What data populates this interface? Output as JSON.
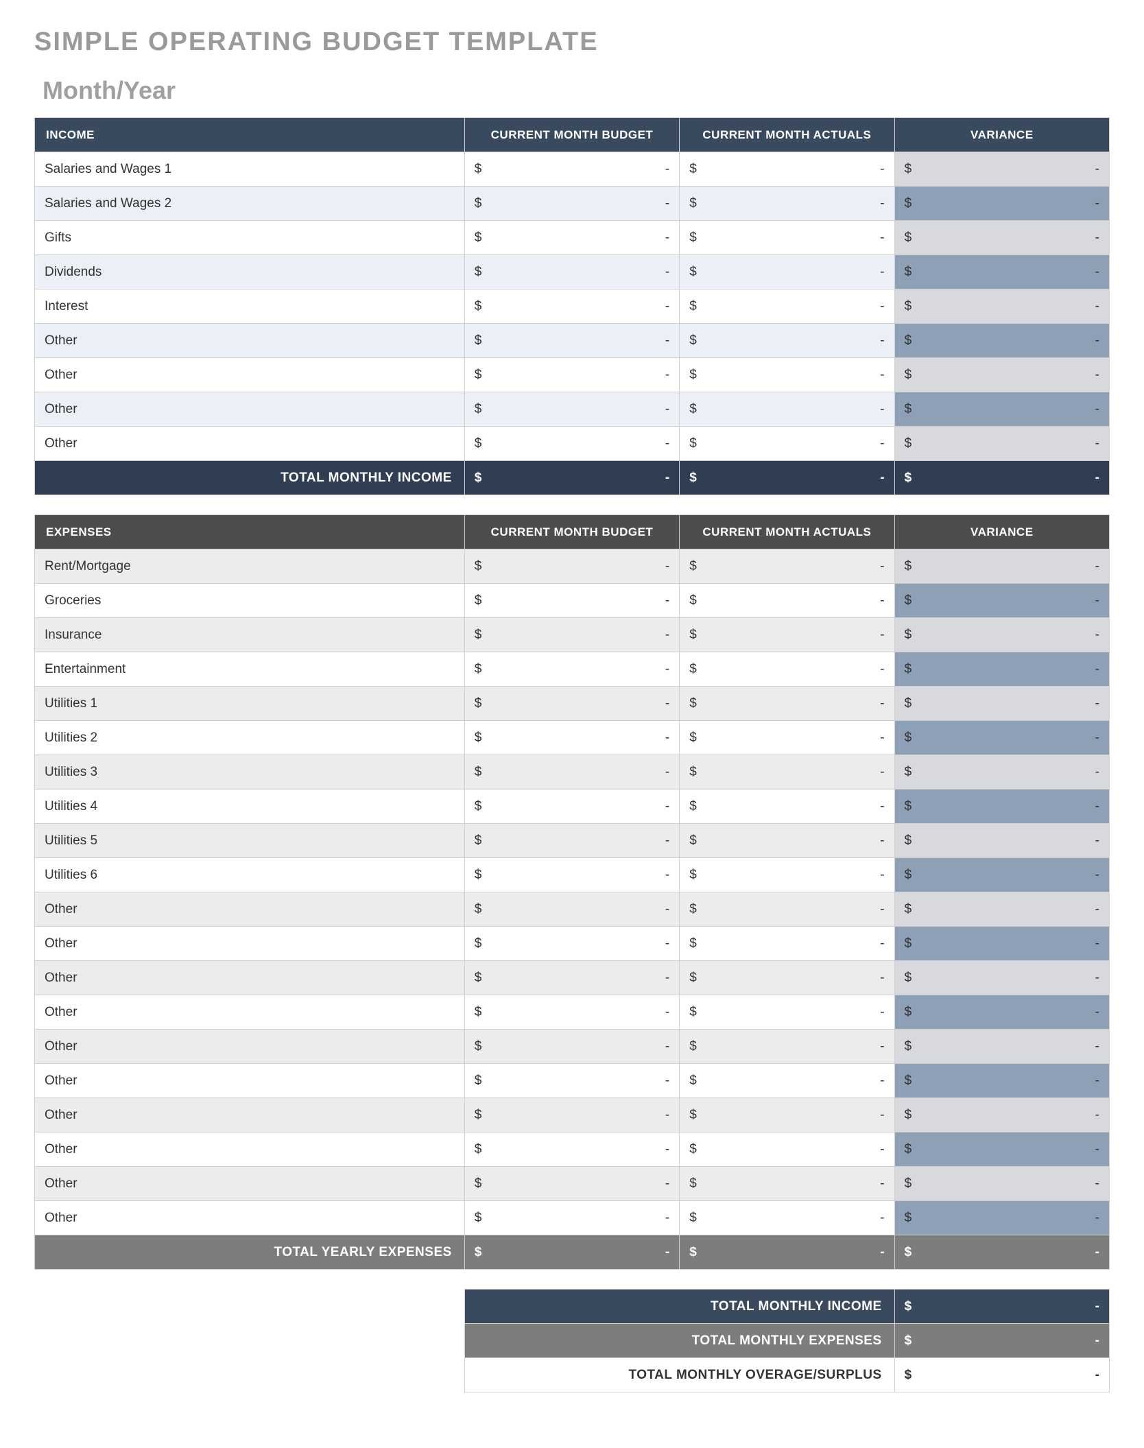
{
  "title": "SIMPLE OPERATING BUDGET TEMPLATE",
  "subtitle": "Month/Year",
  "currency_symbol": "$",
  "empty_value": "-",
  "colors": {
    "income_header_bg": "#3a4a5e",
    "income_row_odd_bg": "#ffffff",
    "income_row_even_bg": "#eaf0f5",
    "income_variance_odd_bg": "#d7d9dc",
    "income_variance_even_bg": "#8ea0b5",
    "income_total_bg": "#2f3e52",
    "expense_header_bg": "#4d4d4d",
    "expense_row_odd_bg": "#ececec",
    "expense_row_even_bg": "#ffffff",
    "expense_variance_odd_bg": "#d7d9dc",
    "expense_variance_even_bg": "#8ea0b5",
    "expense_total_bg": "#7d7d7d",
    "summary_income_bg": "#3a4a5e",
    "summary_expense_bg": "#7d7d7d",
    "summary_overage_bg": "#ffffff",
    "header_text": "#ffffff",
    "body_text": "#333333",
    "title_text": "#9a9a9a",
    "border": "#cfcfcf"
  },
  "income": {
    "label": "INCOME",
    "columns": [
      "CURRENT MONTH BUDGET",
      "CURRENT MONTH ACTUALS",
      "VARIANCE"
    ],
    "rows": [
      {
        "label": "Salaries and Wages 1",
        "budget": "-",
        "actuals": "-",
        "variance": "-"
      },
      {
        "label": "Salaries and Wages 2",
        "budget": "-",
        "actuals": "-",
        "variance": "-"
      },
      {
        "label": "Gifts",
        "budget": "-",
        "actuals": "-",
        "variance": "-"
      },
      {
        "label": "Dividends",
        "budget": "-",
        "actuals": "-",
        "variance": "-"
      },
      {
        "label": "Interest",
        "budget": "-",
        "actuals": "-",
        "variance": "-"
      },
      {
        "label": "Other",
        "budget": "-",
        "actuals": "-",
        "variance": "-"
      },
      {
        "label": "Other",
        "budget": "-",
        "actuals": "-",
        "variance": "-"
      },
      {
        "label": "Other",
        "budget": "-",
        "actuals": "-",
        "variance": "-"
      },
      {
        "label": "Other",
        "budget": "-",
        "actuals": "-",
        "variance": "-"
      }
    ],
    "total_label": "TOTAL MONTHLY INCOME",
    "total": {
      "budget": "-",
      "actuals": "-",
      "variance": "-"
    }
  },
  "expenses": {
    "label": "EXPENSES",
    "columns": [
      "CURRENT MONTH BUDGET",
      "CURRENT MONTH ACTUALS",
      "VARIANCE"
    ],
    "rows": [
      {
        "label": "Rent/Mortgage",
        "budget": "-",
        "actuals": "-",
        "variance": "-"
      },
      {
        "label": "Groceries",
        "budget": "-",
        "actuals": "-",
        "variance": "-"
      },
      {
        "label": "Insurance",
        "budget": "-",
        "actuals": "-",
        "variance": "-"
      },
      {
        "label": "Entertainment",
        "budget": "-",
        "actuals": "-",
        "variance": "-"
      },
      {
        "label": "Utilities 1",
        "budget": "-",
        "actuals": "-",
        "variance": "-"
      },
      {
        "label": "Utilities 2",
        "budget": "-",
        "actuals": "-",
        "variance": "-"
      },
      {
        "label": "Utilities 3",
        "budget": "-",
        "actuals": "-",
        "variance": "-"
      },
      {
        "label": "Utilities 4",
        "budget": "-",
        "actuals": "-",
        "variance": "-"
      },
      {
        "label": "Utilities 5",
        "budget": "-",
        "actuals": "-",
        "variance": "-"
      },
      {
        "label": "Utilities 6",
        "budget": "-",
        "actuals": "-",
        "variance": "-"
      },
      {
        "label": "Other",
        "budget": "-",
        "actuals": "-",
        "variance": "-"
      },
      {
        "label": "Other",
        "budget": "-",
        "actuals": "-",
        "variance": "-"
      },
      {
        "label": "Other",
        "budget": "-",
        "actuals": "-",
        "variance": "-"
      },
      {
        "label": "Other",
        "budget": "-",
        "actuals": "-",
        "variance": "-"
      },
      {
        "label": "Other",
        "budget": "-",
        "actuals": "-",
        "variance": "-"
      },
      {
        "label": "Other",
        "budget": "-",
        "actuals": "-",
        "variance": "-"
      },
      {
        "label": "Other",
        "budget": "-",
        "actuals": "-",
        "variance": "-"
      },
      {
        "label": "Other",
        "budget": "-",
        "actuals": "-",
        "variance": "-"
      },
      {
        "label": "Other",
        "budget": "-",
        "actuals": "-",
        "variance": "-"
      },
      {
        "label": "Other",
        "budget": "-",
        "actuals": "-",
        "variance": "-"
      }
    ],
    "total_label": "TOTAL YEARLY EXPENSES",
    "total": {
      "budget": "-",
      "actuals": "-",
      "variance": "-"
    }
  },
  "summary": {
    "rows": [
      {
        "label": "TOTAL MONTHLY INCOME",
        "value": "-",
        "bg": "summary_income_bg",
        "text": "#ffffff"
      },
      {
        "label": "TOTAL MONTHLY EXPENSES",
        "value": "-",
        "bg": "summary_expense_bg",
        "text": "#ffffff"
      },
      {
        "label": "TOTAL MONTHLY OVERAGE/SURPLUS",
        "value": "-",
        "bg": "summary_overage_bg",
        "text": "#333333"
      }
    ]
  }
}
